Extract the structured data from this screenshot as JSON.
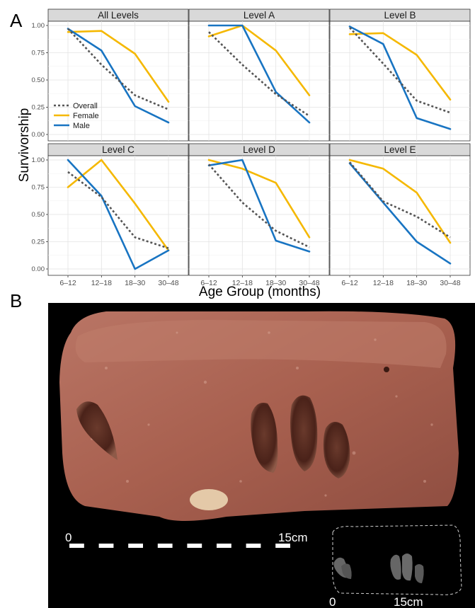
{
  "figure": {
    "panel_a_label": "A",
    "panel_b_label": "B"
  },
  "chart_data": {
    "type": "line",
    "xlabel": "Age Group (months)",
    "ylabel": "Survivorship",
    "categories": [
      "6–12",
      "12–18",
      "18–30",
      "30–48"
    ],
    "ylim": [
      0,
      1
    ],
    "yticks": [
      "0.00",
      "0.25",
      "0.50",
      "0.75",
      "1.00"
    ],
    "grid": true,
    "legend": {
      "placement": "inside panel 'All Levels', bottom-left",
      "entries": [
        "Overall",
        "Female",
        "Male"
      ]
    },
    "colors": {
      "Overall": "#555555",
      "Female": "#F5B800",
      "Male": "#1874C2"
    },
    "panels": [
      {
        "title": "All Levels",
        "series": [
          {
            "name": "Overall",
            "values": [
              0.97,
              0.64,
              0.36,
              0.23
            ]
          },
          {
            "name": "Female",
            "values": [
              0.94,
              0.95,
              0.74,
              0.3
            ]
          },
          {
            "name": "Male",
            "values": [
              0.97,
              0.77,
              0.26,
              0.11
            ]
          }
        ]
      },
      {
        "title": "Level A",
        "series": [
          {
            "name": "Overall",
            "values": [
              0.94,
              0.64,
              0.37,
              0.17
            ]
          },
          {
            "name": "Female",
            "values": [
              0.9,
              1.0,
              0.77,
              0.36
            ]
          },
          {
            "name": "Male",
            "values": [
              1.0,
              1.0,
              0.39,
              0.11
            ]
          }
        ]
      },
      {
        "title": "Level B",
        "series": [
          {
            "name": "Overall",
            "values": [
              0.98,
              0.65,
              0.31,
              0.2
            ]
          },
          {
            "name": "Female",
            "values": [
              0.92,
              0.93,
              0.73,
              0.32
            ]
          },
          {
            "name": "Male",
            "values": [
              0.99,
              0.83,
              0.15,
              0.05
            ]
          }
        ]
      },
      {
        "title": "Level C",
        "series": [
          {
            "name": "Overall",
            "values": [
              0.89,
              0.66,
              0.29,
              0.19
            ]
          },
          {
            "name": "Female",
            "values": [
              0.75,
              1.0,
              0.6,
              0.17
            ]
          },
          {
            "name": "Male",
            "values": [
              1.0,
              0.67,
              0.0,
              0.17
            ]
          }
        ]
      },
      {
        "title": "Level D",
        "series": [
          {
            "name": "Overall",
            "values": [
              0.96,
              0.61,
              0.35,
              0.2
            ]
          },
          {
            "name": "Female",
            "values": [
              1.0,
              0.92,
              0.79,
              0.29
            ]
          },
          {
            "name": "Male",
            "values": [
              0.95,
              1.0,
              0.26,
              0.16
            ]
          }
        ]
      },
      {
        "title": "Level E",
        "series": [
          {
            "name": "Overall",
            "values": [
              0.98,
              0.62,
              0.48,
              0.29
            ]
          },
          {
            "name": "Female",
            "values": [
              1.0,
              0.92,
              0.7,
              0.24
            ]
          },
          {
            "name": "Male",
            "values": [
              0.97,
              0.61,
              0.25,
              0.05
            ]
          }
        ]
      }
    ]
  },
  "photo": {
    "scale_bar": {
      "start_label": "0",
      "end_label": "15cm"
    },
    "inset_scale": {
      "start_label": "0",
      "end_label": "15cm"
    },
    "colors": {
      "background": "#000000",
      "stone": "#B06C5C",
      "stone_dark": "#7A4034",
      "imprint": "#5A2A20"
    }
  }
}
